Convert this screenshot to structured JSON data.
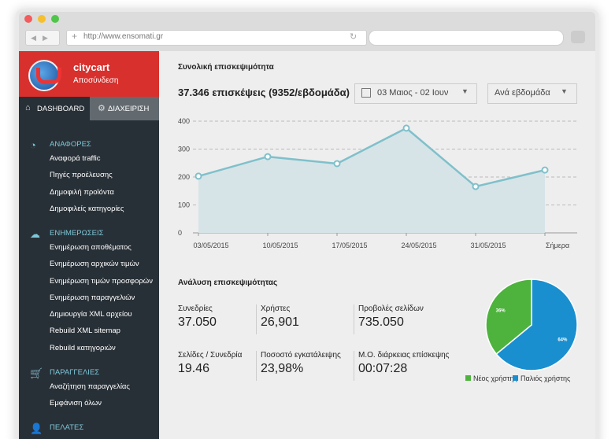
{
  "browser": {
    "url": "http://www.ensomati.gr"
  },
  "sidebar": {
    "brand": "citycart",
    "logout": "Αποσύνδεση",
    "tabs": [
      "DASHBOARD",
      "ΔΙΑΧΕΙΡΙΣΗ"
    ],
    "sections": [
      {
        "title": "ΑΝΑΦΟΡΕΣ",
        "items": [
          "Αναφορά traffic",
          "Πηγές προέλευσης",
          "Δημοφιλή προϊόντα",
          "Δημοφιλείς κατηγορίες"
        ]
      },
      {
        "title": "ΕΝΗΜΕΡΩΣΕΙΣ",
        "items": [
          "Ενημέρωση αποθέματος",
          "Ενημέρωση αρχικών τιμών",
          "Ενημέρωση τιμών προσφορών",
          "Ενημέρωση παραγγελιών",
          "Δημιουργία XML αρχείου",
          "Rebuild XML sitemap",
          "Rebuild κατηγοριών"
        ]
      },
      {
        "title": "ΠΑΡΑΓΓΕΛΙΕΣ",
        "items": [
          "Αναζήτηση παραγγελίας",
          "Εμφάνιση όλων"
        ]
      },
      {
        "title": "ΠΕΛΑΤΕΣ"
      }
    ]
  },
  "traffic": {
    "title": "Συνολική επισκεψιμότητα",
    "summary": "37.346 επισκέψεις (9352/εβδομάδα)",
    "date_range": "03 Μαιος - 02 Ιουν",
    "period": "Ανά εβδομάδα"
  },
  "analysis": {
    "title": "Ανάλυση επισκεψιμότητας",
    "stats": [
      {
        "label": "Συνεδρίες",
        "value": "37.050"
      },
      {
        "label": "Χρήστες",
        "value": "26,901"
      },
      {
        "label": "Προβολές σελίδων",
        "value": "735.050"
      },
      {
        "label": "Σελίδες / Συνεδρία",
        "value": "19.46"
      },
      {
        "label": "Ποσοστό εγκατάλειψης",
        "value": "23,98%"
      },
      {
        "label": "Μ.Ο. διάρκειας επίσκεψης",
        "value": "00:07:28"
      }
    ]
  },
  "chart_data": [
    {
      "type": "line",
      "categories": [
        "03/05/2015",
        "10/05/2015",
        "17/05/2015",
        "24/05/2015",
        "31/05/2015",
        "Σήμερα"
      ],
      "values": [
        203,
        273,
        248,
        375,
        166,
        225
      ],
      "color": "#7fc0cb",
      "fill": "#d6e4e7",
      "ylim": [
        0,
        400
      ],
      "yticks": [
        0,
        100,
        200,
        300,
        400
      ],
      "grid": true
    },
    {
      "type": "pie",
      "categories": [
        "Νέος χρήστης",
        "Παλιός χρήστης"
      ],
      "values": [
        36,
        64
      ],
      "value_labels": [
        "36%",
        "64%"
      ],
      "colors": [
        "#4db33d",
        "#1a8fcf"
      ]
    }
  ]
}
